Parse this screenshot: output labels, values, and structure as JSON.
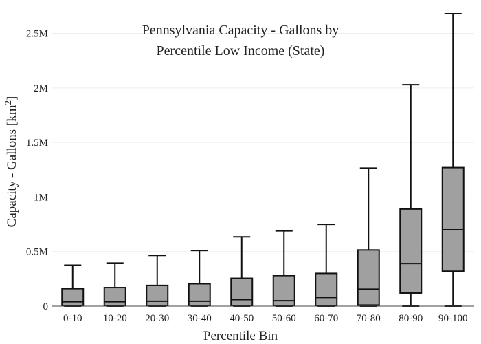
{
  "chart_data": {
    "type": "box",
    "title_lines": [
      "Pennsylvania Capacity - Gallons by",
      "Percentile Low Income (State)"
    ],
    "xlabel": "Percentile Bin",
    "ylabel_main": "Capacity - Gallons  [km",
    "ylabel_sup": "2",
    "ylabel_end": "]",
    "ylim": [
      0,
      2680000
    ],
    "y_ticks": [
      {
        "value": 0,
        "label": "0"
      },
      {
        "value": 500000,
        "label": "0.5M"
      },
      {
        "value": 1000000,
        "label": "1M"
      },
      {
        "value": 1500000,
        "label": "1.5M"
      },
      {
        "value": 2000000,
        "label": "2M"
      },
      {
        "value": 2500000,
        "label": "2.5M"
      }
    ],
    "categories": [
      "0-10",
      "10-20",
      "20-30",
      "30-40",
      "40-50",
      "50-60",
      "60-70",
      "70-80",
      "80-90",
      "90-100"
    ],
    "boxes": [
      {
        "min": 0,
        "q1": 5000,
        "median": 40000,
        "q3": 160000,
        "max": 375000
      },
      {
        "min": 0,
        "q1": 5000,
        "median": 40000,
        "q3": 170000,
        "max": 395000
      },
      {
        "min": 0,
        "q1": 5000,
        "median": 45000,
        "q3": 190000,
        "max": 465000
      },
      {
        "min": 0,
        "q1": 5000,
        "median": 45000,
        "q3": 205000,
        "max": 510000
      },
      {
        "min": 0,
        "q1": 5000,
        "median": 60000,
        "q3": 255000,
        "max": 635000
      },
      {
        "min": 0,
        "q1": 5000,
        "median": 50000,
        "q3": 280000,
        "max": 690000
      },
      {
        "min": 0,
        "q1": 5000,
        "median": 80000,
        "q3": 300000,
        "max": 750000
      },
      {
        "min": 0,
        "q1": 10000,
        "median": 155000,
        "q3": 515000,
        "max": 1265000
      },
      {
        "min": 0,
        "q1": 120000,
        "median": 390000,
        "q3": 890000,
        "max": 2030000
      },
      {
        "min": 0,
        "q1": 320000,
        "median": 700000,
        "q3": 1270000,
        "max": 2680000
      }
    ],
    "grid": true,
    "box_color": "#a0a0a0",
    "line_color": "#111111"
  }
}
